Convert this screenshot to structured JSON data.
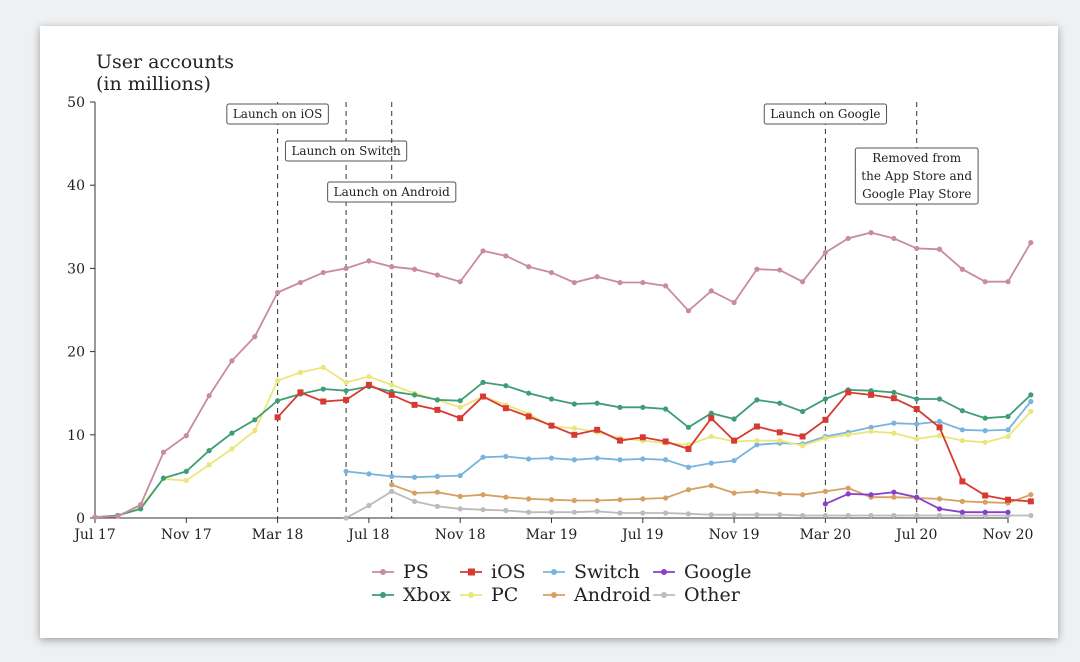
{
  "chart_data": {
    "type": "line",
    "ylabel": [
      "User accounts",
      "(in millions)"
    ],
    "ylim": [
      0,
      50
    ],
    "yticks": [
      0,
      10,
      20,
      30,
      40,
      50
    ],
    "xlim": [
      0,
      40
    ],
    "xticks": [
      {
        "pos": 0,
        "label": "Jul 17"
      },
      {
        "pos": 4,
        "label": "Nov 17"
      },
      {
        "pos": 8,
        "label": "Mar 18"
      },
      {
        "pos": 12,
        "label": "Jul 18"
      },
      {
        "pos": 16,
        "label": "Nov 18"
      },
      {
        "pos": 20,
        "label": "Mar 19"
      },
      {
        "pos": 24,
        "label": "Jul 19"
      },
      {
        "pos": 28,
        "label": "Nov 19"
      },
      {
        "pos": 32,
        "label": "Mar 20"
      },
      {
        "pos": 36,
        "label": "Jul 20"
      },
      {
        "pos": 40,
        "label": "Nov 20"
      }
    ],
    "events": [
      {
        "x": 8,
        "lines": [
          "Launch on iOS"
        ]
      },
      {
        "x": 11,
        "lines": [
          "Launch on Switch"
        ]
      },
      {
        "x": 13,
        "lines": [
          "Launch on Android"
        ]
      },
      {
        "x": 32,
        "lines": [
          "Launch on Google"
        ]
      },
      {
        "x": 36,
        "lines": [
          "Removed from",
          "the App Store and",
          "Google Play Store"
        ]
      }
    ],
    "series": [
      {
        "name": "PS",
        "color": "#c88aa4",
        "marker": "circle",
        "start": 0,
        "values": [
          0.1,
          0.2,
          1.6,
          7.9,
          9.9,
          14.7,
          18.9,
          21.8,
          27.1,
          28.3,
          29.5,
          30.0,
          30.9,
          30.2,
          29.9,
          29.2,
          28.4,
          32.1,
          31.5,
          30.2,
          29.5,
          28.3,
          29.0,
          28.3,
          28.3,
          27.9,
          24.9,
          27.3,
          25.9,
          29.9,
          29.8,
          28.4,
          31.9,
          33.6,
          34.3,
          33.6,
          32.4,
          32.3,
          29.9,
          28.4,
          28.4,
          33.1
        ]
      },
      {
        "name": "iOS",
        "color": "#d63a32",
        "marker": "square",
        "start": 8,
        "values": [
          12.1,
          15.1,
          14.0,
          14.2,
          16.0,
          14.8,
          13.6,
          13.0,
          12.0,
          14.6,
          13.2,
          12.2,
          11.1,
          10.0,
          10.6,
          9.3,
          9.7,
          9.2,
          8.3,
          12.0,
          9.3,
          11.0,
          10.3,
          9.8,
          11.8,
          15.1,
          14.8,
          14.4,
          13.1,
          10.9,
          4.4,
          2.7,
          2.2,
          2.0
        ]
      },
      {
        "name": "Switch",
        "color": "#78b4de",
        "marker": "circle",
        "start": 11,
        "values": [
          5.6,
          5.3,
          5.0,
          4.9,
          5.0,
          5.1,
          7.3,
          7.4,
          7.1,
          7.2,
          7.0,
          7.2,
          7.0,
          7.1,
          7.0,
          6.1,
          6.6,
          6.9,
          8.8,
          9.0,
          8.9,
          9.8,
          10.3,
          10.9,
          11.4,
          11.3,
          11.6,
          10.6,
          10.5,
          10.6,
          14.0
        ]
      },
      {
        "name": "Google",
        "color": "#8a3fc8",
        "marker": "circle",
        "start": 32,
        "values": [
          1.7,
          2.9,
          2.8,
          3.1,
          2.5,
          1.1,
          0.7,
          0.7,
          0.7
        ]
      },
      {
        "name": "Xbox",
        "color": "#3f9d76",
        "marker": "circle",
        "start": 0,
        "values": [
          0.1,
          0.3,
          1.1,
          4.8,
          5.6,
          8.1,
          10.2,
          11.8,
          14.1,
          14.9,
          15.5,
          15.3,
          15.8,
          15.2,
          14.8,
          14.2,
          14.1,
          16.3,
          15.9,
          15.0,
          14.3,
          13.7,
          13.8,
          13.3,
          13.3,
          13.1,
          10.9,
          12.6,
          11.9,
          14.2,
          13.8,
          12.8,
          14.3,
          15.4,
          15.3,
          15.1,
          14.3,
          14.3,
          12.9,
          12.0,
          12.2,
          14.8
        ]
      },
      {
        "name": "PC",
        "color": "#ece67a",
        "marker": "circle",
        "start": 0,
        "values": [
          0.1,
          0.3,
          1.4,
          4.7,
          4.5,
          6.4,
          8.3,
          10.5,
          16.5,
          17.5,
          18.1,
          16.3,
          17.0,
          16.0,
          15.0,
          14.2,
          13.3,
          14.6,
          13.6,
          12.5,
          11.0,
          10.8,
          10.3,
          9.6,
          9.3,
          9.0,
          8.8,
          9.8,
          9.2,
          9.3,
          9.3,
          8.7,
          9.6,
          10.0,
          10.4,
          10.2,
          9.5,
          9.9,
          9.3,
          9.1,
          9.8,
          12.8
        ]
      },
      {
        "name": "Android",
        "color": "#d6a062",
        "marker": "circle",
        "start": 13,
        "values": [
          4.0,
          3.0,
          3.1,
          2.6,
          2.8,
          2.5,
          2.3,
          2.2,
          2.1,
          2.1,
          2.2,
          2.3,
          2.4,
          3.4,
          3.9,
          3.0,
          3.2,
          2.9,
          2.8,
          3.2,
          3.6,
          2.5,
          2.5,
          2.4,
          2.3,
          2.0,
          1.9,
          1.8,
          2.8
        ]
      },
      {
        "name": "Other",
        "color": "#bbbbbb",
        "marker": "circle",
        "start": 11,
        "values": [
          0.0,
          1.5,
          3.2,
          2.0,
          1.4,
          1.1,
          1.0,
          0.9,
          0.7,
          0.7,
          0.7,
          0.8,
          0.6,
          0.6,
          0.6,
          0.5,
          0.4,
          0.4,
          0.4,
          0.4,
          0.3,
          0.3,
          0.3,
          0.3,
          0.3,
          0.3,
          0.3,
          0.3,
          0.3,
          0.3,
          0.3
        ]
      }
    ],
    "legend": {
      "rows": [
        [
          "PS",
          "iOS",
          "Switch",
          "Google"
        ],
        [
          "Xbox",
          "PC",
          "Android",
          "Other"
        ]
      ]
    }
  }
}
